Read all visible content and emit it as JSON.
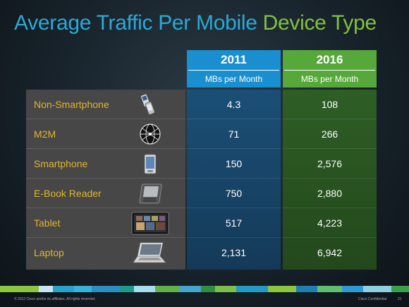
{
  "title": {
    "part1": "Average Traffic Per Mobile ",
    "part2": "Device Type"
  },
  "columns": [
    {
      "year": "2011",
      "unit": "MBs per Month"
    },
    {
      "year": "2016",
      "unit": "MBs per Month"
    }
  ],
  "rows": [
    {
      "label": "Non-Smartphone",
      "icon": "feature-phone-icon",
      "v2011": "4.3",
      "v2016": "108"
    },
    {
      "label": "M2M",
      "icon": "globe-network-icon",
      "v2011": "71",
      "v2016": "266"
    },
    {
      "label": "Smartphone",
      "icon": "smartphone-icon",
      "v2011": "150",
      "v2016": "2,576"
    },
    {
      "label": "E-Book Reader",
      "icon": "ebook-reader-icon",
      "v2011": "750",
      "v2016": "2,880"
    },
    {
      "label": "Tablet",
      "icon": "tablet-icon",
      "v2011": "517",
      "v2016": "4,223"
    },
    {
      "label": "Laptop",
      "icon": "laptop-icon",
      "v2011": "2,131",
      "v2016": "6,942"
    }
  ],
  "footer": {
    "copyright": "© 2012 Cisco and/or its affiliates. All rights reserved.",
    "classification": "Cisco Confidential",
    "page": "21"
  },
  "colors": {
    "title_blue": "#2aaad6",
    "title_green": "#7fc241",
    "header_2011": "#1a8fcf",
    "header_2016": "#56a83a",
    "label_text": "#e2b52a"
  }
}
